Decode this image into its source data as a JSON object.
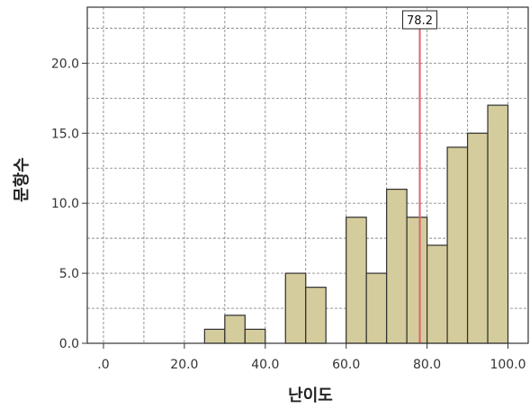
{
  "chart_data": {
    "type": "bar",
    "subtype": "histogram",
    "title": "",
    "xlabel": "난이도",
    "ylabel": "문항수",
    "xlim": [
      -4,
      105
    ],
    "ylim": [
      0,
      24
    ],
    "bin_width": 5,
    "x_ticks": [
      0,
      20,
      40,
      60,
      80,
      100
    ],
    "x_tick_labels": [
      ".0",
      "20.0",
      "40.0",
      "60.0",
      "80.0",
      "100.0"
    ],
    "y_ticks": [
      0,
      5,
      10,
      15,
      20
    ],
    "y_tick_labels": [
      "0.0",
      "5.0",
      "10.0",
      "15.0",
      "20.0"
    ],
    "bins": [
      {
        "x_start": 25,
        "x_end": 30,
        "value": 1
      },
      {
        "x_start": 30,
        "x_end": 35,
        "value": 2
      },
      {
        "x_start": 35,
        "x_end": 40,
        "value": 1
      },
      {
        "x_start": 45,
        "x_end": 50,
        "value": 5
      },
      {
        "x_start": 50,
        "x_end": 55,
        "value": 4
      },
      {
        "x_start": 60,
        "x_end": 65,
        "value": 9
      },
      {
        "x_start": 65,
        "x_end": 70,
        "value": 5
      },
      {
        "x_start": 70,
        "x_end": 75,
        "value": 11
      },
      {
        "x_start": 75,
        "x_end": 80,
        "value": 9
      },
      {
        "x_start": 80,
        "x_end": 85,
        "value": 7
      },
      {
        "x_start": 85,
        "x_end": 90,
        "value": 14
      },
      {
        "x_start": 90,
        "x_end": 95,
        "value": 15
      },
      {
        "x_start": 95,
        "x_end": 100,
        "value": 17
      }
    ],
    "reference_line": {
      "x": 78.2,
      "label": "78.2",
      "color": "#e0606c"
    },
    "grid": true,
    "colors": {
      "bar_fill": "#d4cc9c",
      "bar_stroke": "#2e2e2e",
      "grid": "#8a8a8a",
      "axis": "#333333"
    }
  }
}
